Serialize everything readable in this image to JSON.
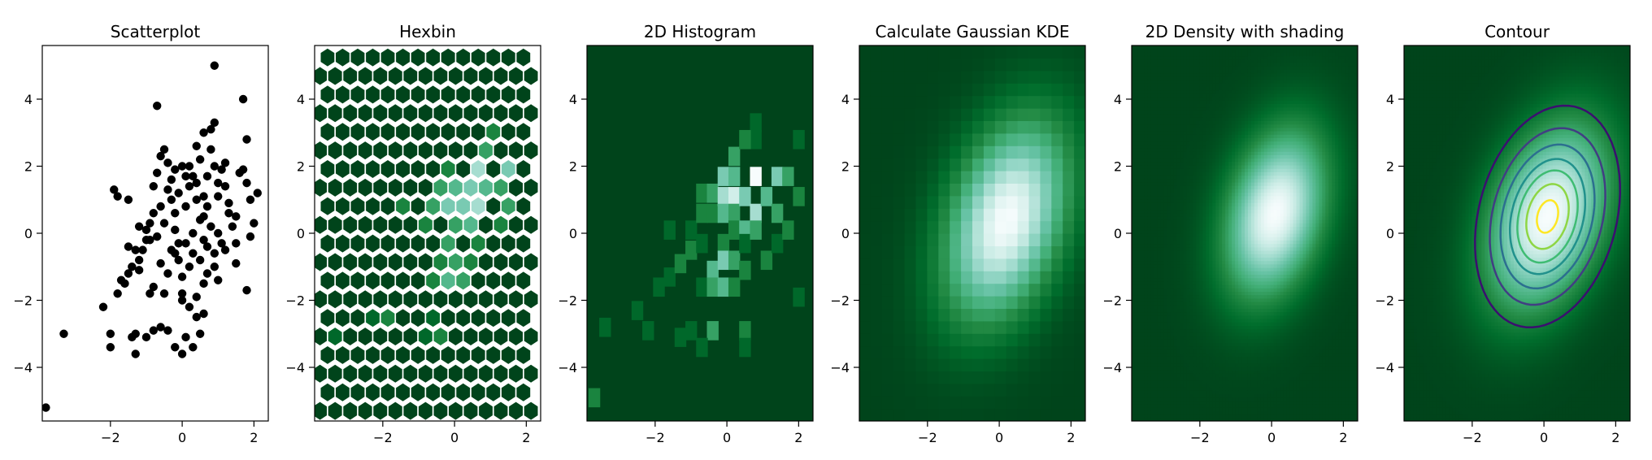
{
  "chart_data": [
    {
      "type": "scatter",
      "title": "Scatterplot",
      "xlim": [
        -3.9,
        2.4
      ],
      "ylim": [
        -5.6,
        5.6
      ],
      "xticks": [
        -2,
        0,
        2
      ],
      "yticks": [
        -4,
        -2,
        0,
        2,
        4
      ],
      "marker_color": "#000000",
      "points": [
        [
          -3.8,
          -5.2
        ],
        [
          -3.3,
          -3.0
        ],
        [
          -2.2,
          -2.2
        ],
        [
          -2.0,
          -3.4
        ],
        [
          -2.0,
          -3.0
        ],
        [
          -1.8,
          -1.8
        ],
        [
          -1.7,
          -1.4
        ],
        [
          -1.6,
          -1.5
        ],
        [
          -1.5,
          -1.2
        ],
        [
          -1.4,
          -1.0
        ],
        [
          -1.3,
          -0.5
        ],
        [
          -1.2,
          -0.8
        ],
        [
          -1.1,
          -0.5
        ],
        [
          -1.0,
          -0.2
        ],
        [
          -1.4,
          -3.1
        ],
        [
          -1.3,
          -3.0
        ],
        [
          -1.3,
          -3.6
        ],
        [
          -1.0,
          -3.1
        ],
        [
          -0.8,
          -2.9
        ],
        [
          -0.6,
          -2.8
        ],
        [
          -0.4,
          -2.9
        ],
        [
          -0.2,
          -3.4
        ],
        [
          0.0,
          -3.6
        ],
        [
          0.1,
          -3.1
        ],
        [
          0.3,
          -3.4
        ],
        [
          0.5,
          -3.0
        ],
        [
          0.4,
          -2.5
        ],
        [
          0.6,
          -2.4
        ],
        [
          -1.9,
          1.3
        ],
        [
          -1.8,
          1.1
        ],
        [
          -1.5,
          1.0
        ],
        [
          -1.2,
          0.2
        ],
        [
          -1.0,
          0.1
        ],
        [
          -0.9,
          -0.2
        ],
        [
          -0.8,
          0.6
        ],
        [
          -0.8,
          1.4
        ],
        [
          -0.7,
          1.8
        ],
        [
          -0.6,
          2.3
        ],
        [
          -0.7,
          3.8
        ],
        [
          -0.5,
          2.5
        ],
        [
          -0.4,
          2.1
        ],
        [
          -0.3,
          1.6
        ],
        [
          -0.3,
          1.0
        ],
        [
          -0.2,
          0.6
        ],
        [
          -0.2,
          0.1
        ],
        [
          -0.1,
          -0.3
        ],
        [
          -0.1,
          -0.8
        ],
        [
          0.0,
          -1.3
        ],
        [
          0.0,
          -1.8
        ],
        [
          -0.5,
          -1.8
        ],
        [
          -0.6,
          -0.9
        ],
        [
          -0.8,
          -1.6
        ],
        [
          -0.9,
          -1.8
        ],
        [
          -0.4,
          -1.2
        ],
        [
          -0.3,
          -0.5
        ],
        [
          0.2,
          2.0
        ],
        [
          0.3,
          1.7
        ],
        [
          0.4,
          2.6
        ],
        [
          0.5,
          2.2
        ],
        [
          0.6,
          1.1
        ],
        [
          0.7,
          0.8
        ],
        [
          0.8,
          3.1
        ],
        [
          0.9,
          3.3
        ],
        [
          0.9,
          2.0
        ],
        [
          1.0,
          1.5
        ],
        [
          1.1,
          1.9
        ],
        [
          1.2,
          1.4
        ],
        [
          1.3,
          0.6
        ],
        [
          1.4,
          0.2
        ],
        [
          1.5,
          -0.3
        ],
        [
          1.6,
          1.8
        ],
        [
          1.7,
          1.9
        ],
        [
          1.8,
          1.5
        ],
        [
          1.9,
          1.0
        ],
        [
          2.0,
          0.3
        ],
        [
          1.9,
          -0.1
        ],
        [
          1.8,
          2.8
        ],
        [
          1.7,
          4.0
        ],
        [
          0.9,
          5.0
        ],
        [
          2.1,
          1.2
        ],
        [
          1.5,
          -0.9
        ],
        [
          1.2,
          -0.5
        ],
        [
          0.9,
          -1.0
        ],
        [
          0.6,
          -1.5
        ],
        [
          0.4,
          -1.9
        ],
        [
          0.2,
          -2.2
        ],
        [
          0.0,
          -2.0
        ],
        [
          1.8,
          -1.7
        ],
        [
          1.0,
          -1.4
        ],
        [
          0.7,
          -0.4
        ],
        [
          0.5,
          0.4
        ],
        [
          0.3,
          0.0
        ],
        [
          0.1,
          0.8
        ],
        [
          -0.1,
          1.2
        ],
        [
          0.0,
          2.0
        ],
        [
          0.2,
          1.4
        ],
        [
          0.4,
          1.0
        ],
        [
          0.6,
          0.5
        ],
        [
          0.8,
          0.2
        ],
        [
          1.0,
          0.0
        ],
        [
          1.1,
          -0.3
        ],
        [
          -1.5,
          -0.4
        ],
        [
          -1.2,
          -1.1
        ],
        [
          -0.7,
          -0.1
        ],
        [
          -0.5,
          0.3
        ],
        [
          -0.2,
          -0.6
        ],
        [
          0.2,
          -1.0
        ],
        [
          0.5,
          -0.8
        ],
        [
          0.7,
          -1.2
        ],
        [
          0.9,
          -0.6
        ],
        [
          1.3,
          0.9
        ],
        [
          1.5,
          0.5
        ],
        [
          1.2,
          2.1
        ],
        [
          0.8,
          2.5
        ],
        [
          0.6,
          3.0
        ],
        [
          -0.4,
          1.3
        ],
        [
          -0.6,
          0.8
        ],
        [
          -0.9,
          0.3
        ],
        [
          0.1,
          -0.3
        ],
        [
          0.3,
          -0.6
        ],
        [
          0.6,
          -0.2
        ],
        [
          -0.2,
          1.9
        ],
        [
          0.1,
          1.7
        ],
        [
          0.4,
          1.5
        ],
        [
          0.7,
          1.7
        ],
        [
          1.0,
          1.1
        ]
      ]
    },
    {
      "type": "heatmap",
      "title": "Hexbin",
      "xlim": [
        -3.9,
        2.4
      ],
      "ylim": [
        -5.6,
        5.6
      ],
      "xticks": [
        -2,
        0,
        2
      ],
      "yticks": [
        -4,
        -2,
        0,
        2,
        4
      ],
      "colormap": [
        "#00441b",
        "#006d2c",
        "#238b45",
        "#41ae76",
        "#66c2a4",
        "#99d8c9",
        "#ccece6",
        "#f7fcfd"
      ],
      "hot_cells": [
        [
          -0.8,
          0.6,
          2
        ],
        [
          -0.6,
          1.0,
          3
        ],
        [
          -0.4,
          1.5,
          2
        ],
        [
          -0.2,
          1.2,
          3
        ],
        [
          0.0,
          2.1,
          2
        ],
        [
          0.2,
          1.6,
          4
        ],
        [
          0.4,
          1.0,
          5
        ],
        [
          0.6,
          0.4,
          4
        ],
        [
          0.8,
          1.8,
          6
        ],
        [
          1.0,
          1.4,
          4
        ],
        [
          0.2,
          0.2,
          3
        ],
        [
          0.0,
          0.6,
          5
        ],
        [
          -0.2,
          -0.2,
          3
        ],
        [
          -0.4,
          -0.8,
          2
        ],
        [
          -0.2,
          -1.2,
          4
        ],
        [
          0.0,
          -0.6,
          3
        ],
        [
          0.4,
          -1.0,
          2
        ],
        [
          0.2,
          -1.6,
          3
        ],
        [
          0.6,
          -0.4,
          2
        ],
        [
          -0.6,
          -1.6,
          2
        ],
        [
          -1.0,
          0.0,
          2
        ],
        [
          -1.4,
          0.9,
          2
        ],
        [
          1.6,
          1.9,
          5
        ],
        [
          1.4,
          1.1,
          3
        ],
        [
          1.2,
          0.4,
          2
        ],
        [
          0.8,
          0.9,
          6
        ],
        [
          0.6,
          1.3,
          5
        ],
        [
          -1.8,
          -2.4,
          2
        ],
        [
          -2.2,
          -2.6,
          1
        ],
        [
          -3.4,
          -3.0,
          1
        ],
        [
          0.8,
          2.6,
          3
        ],
        [
          1.2,
          3.0,
          2
        ],
        [
          -0.8,
          -2.8,
          1
        ],
        [
          -0.3,
          -3.0,
          2
        ]
      ]
    },
    {
      "type": "heatmap",
      "title": "2D Histogram",
      "xlim": [
        -3.9,
        2.4
      ],
      "ylim": [
        -5.6,
        5.6
      ],
      "xticks": [
        -2,
        0,
        2
      ],
      "yticks": [
        -4,
        -2,
        0,
        2,
        4
      ],
      "nbins": [
        20,
        20
      ],
      "colormap": [
        "#00441b",
        "#006d2c",
        "#238b45",
        "#41ae76",
        "#66c2a4",
        "#99d8c9",
        "#ccece6",
        "#f7fcfd"
      ],
      "cells": [
        [
          -3.7,
          -4.9,
          2
        ],
        [
          -3.4,
          -2.8,
          1
        ],
        [
          -2.5,
          -2.3,
          1
        ],
        [
          -2.2,
          -2.9,
          1
        ],
        [
          -1.9,
          -1.6,
          1
        ],
        [
          -1.6,
          -1.3,
          1
        ],
        [
          -1.3,
          -0.9,
          2
        ],
        [
          -1.3,
          -3.1,
          1
        ],
        [
          -1.0,
          0.1,
          1
        ],
        [
          -1.0,
          -0.5,
          2
        ],
        [
          -1.0,
          -2.9,
          1
        ],
        [
          -0.7,
          0.6,
          2
        ],
        [
          -0.7,
          -0.3,
          1
        ],
        [
          -0.7,
          -1.6,
          1
        ],
        [
          -0.7,
          1.2,
          2
        ],
        [
          -0.4,
          1.2,
          3
        ],
        [
          -0.4,
          0.6,
          2
        ],
        [
          -0.4,
          -1.1,
          4
        ],
        [
          -0.4,
          -1.6,
          3
        ],
        [
          -0.4,
          -2.9,
          3
        ],
        [
          -0.1,
          1.7,
          5
        ],
        [
          -0.1,
          1.1,
          6
        ],
        [
          -0.1,
          0.6,
          4
        ],
        [
          -0.1,
          -0.3,
          2
        ],
        [
          -0.1,
          -0.8,
          5
        ],
        [
          -0.1,
          -1.6,
          4
        ],
        [
          0.2,
          2.3,
          3
        ],
        [
          0.2,
          1.7,
          4
        ],
        [
          0.2,
          1.1,
          7
        ],
        [
          0.2,
          0.6,
          3
        ],
        [
          0.2,
          0.1,
          2
        ],
        [
          0.2,
          -0.8,
          3
        ],
        [
          0.2,
          -1.6,
          2
        ],
        [
          0.5,
          1.1,
          5
        ],
        [
          0.5,
          0.1,
          4
        ],
        [
          0.5,
          -0.3,
          1
        ],
        [
          0.5,
          -1.1,
          2
        ],
        [
          0.5,
          -2.9,
          2
        ],
        [
          0.8,
          1.7,
          8
        ],
        [
          0.8,
          0.6,
          6
        ],
        [
          0.8,
          0.1,
          3
        ],
        [
          0.8,
          2.8,
          1
        ],
        [
          0.8,
          3.3,
          1
        ],
        [
          1.1,
          1.1,
          4
        ],
        [
          1.1,
          -0.8,
          2
        ],
        [
          1.4,
          1.7,
          5
        ],
        [
          1.4,
          0.6,
          3
        ],
        [
          1.4,
          -0.3,
          1
        ],
        [
          1.7,
          1.7,
          3
        ],
        [
          1.7,
          0.1,
          2
        ],
        [
          2.0,
          2.8,
          1
        ],
        [
          2.0,
          1.1,
          2
        ],
        [
          2.0,
          -1.9,
          1
        ],
        [
          -0.7,
          -3.4,
          1
        ],
        [
          -1.6,
          0.1,
          1
        ],
        [
          0.5,
          2.8,
          2
        ],
        [
          0.5,
          -3.4,
          1
        ]
      ]
    },
    {
      "type": "heatmap",
      "title": "Calculate Gaussian KDE",
      "xlim": [
        -3.9,
        2.4
      ],
      "ylim": [
        -5.6,
        5.6
      ],
      "xticks": [
        -2,
        0,
        2
      ],
      "yticks": [
        -4,
        -2,
        0,
        2,
        4
      ],
      "colormap": [
        "#00441b",
        "#006d2c",
        "#238b45",
        "#41ae76",
        "#66c2a4",
        "#99d8c9",
        "#ccece6",
        "#f7fcfd"
      ],
      "kde_center": [
        0.2,
        0.4
      ],
      "kde_sigma": [
        1.1,
        1.9
      ],
      "kde_rho": 0.35
    },
    {
      "type": "heatmap",
      "title": "2D Density with shading",
      "xlim": [
        -3.9,
        2.4
      ],
      "ylim": [
        -5.6,
        5.6
      ],
      "xticks": [
        -2,
        0,
        2
      ],
      "yticks": [
        -4,
        -2,
        0,
        2,
        4
      ],
      "colormap": [
        "#00441b",
        "#006d2c",
        "#238b45",
        "#41ae76",
        "#66c2a4",
        "#99d8c9",
        "#ccece6",
        "#f7fcfd"
      ],
      "kde_center": [
        0.1,
        0.6
      ],
      "kde_sigma": [
        0.9,
        1.6
      ],
      "kde_rho": 0.3
    },
    {
      "type": "heatmap",
      "title": "Contour",
      "xlim": [
        -3.9,
        2.4
      ],
      "ylim": [
        -5.6,
        5.6
      ],
      "xticks": [
        -2,
        0,
        2
      ],
      "yticks": [
        -4,
        -2,
        0,
        2,
        4
      ],
      "colormap": [
        "#00441b",
        "#006d2c",
        "#238b45",
        "#41ae76",
        "#66c2a4",
        "#99d8c9",
        "#ccece6",
        "#f7fcfd"
      ],
      "contour_colors": [
        "#3b0f6f",
        "#413e83",
        "#2c6f8f",
        "#21918c",
        "#3fbc73",
        "#8ed645",
        "#fde725"
      ],
      "contour_levels": [
        0.15,
        0.3,
        0.45,
        0.6,
        0.72,
        0.85,
        0.96
      ],
      "kde_center": [
        0.1,
        0.5
      ],
      "kde_sigma": [
        1.1,
        1.8
      ],
      "kde_rho": 0.35
    }
  ]
}
